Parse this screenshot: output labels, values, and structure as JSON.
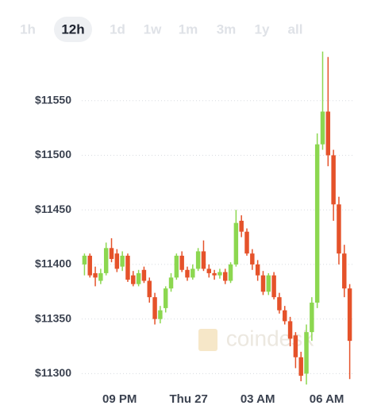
{
  "tabs": [
    {
      "label": "1h"
    },
    {
      "label": "12h",
      "selected": true
    },
    {
      "label": "1d"
    },
    {
      "label": "1w"
    },
    {
      "label": "1m"
    },
    {
      "label": "3m"
    },
    {
      "label": "1y"
    },
    {
      "label": "all"
    }
  ],
  "chart_data": {
    "type": "candlestick",
    "watermark": "coindesk",
    "up_color": "#8cd750",
    "down_color": "#e5522a",
    "grid": true,
    "open": [
      11400,
      11408,
      11392,
      11385,
      11392,
      11415,
      11410,
      11398,
      11408,
      11390,
      11382,
      11395,
      11385,
      11370,
      11350,
      11360,
      11378,
      11388,
      11408,
      11395,
      11388,
      11396,
      11412,
      11396,
      11392,
      11390,
      11393,
      11385,
      11400,
      11440,
      11430,
      11410,
      11400,
      11390,
      11375,
      11390,
      11370,
      11358,
      11348,
      11335,
      11315,
      11300,
      11338,
      11365,
      11510,
      11540,
      11500,
      11455,
      11410,
      11378
    ],
    "high": [
      11410,
      11410,
      11398,
      11396,
      11420,
      11424,
      11414,
      11412,
      11410,
      11394,
      11395,
      11398,
      11388,
      11374,
      11362,
      11380,
      11392,
      11410,
      11412,
      11398,
      11400,
      11415,
      11422,
      11400,
      11395,
      11396,
      11396,
      11402,
      11450,
      11445,
      11433,
      11414,
      11404,
      11394,
      11392,
      11393,
      11374,
      11362,
      11352,
      11338,
      11320,
      11345,
      11370,
      11520,
      11595,
      11590,
      11505,
      11462,
      11418,
      11382
    ],
    "low": [
      11390,
      11388,
      11380,
      11382,
      11390,
      11402,
      11393,
      11394,
      11384,
      11380,
      11380,
      11383,
      11365,
      11345,
      11346,
      11356,
      11375,
      11386,
      11393,
      11385,
      11386,
      11394,
      11394,
      11388,
      11386,
      11387,
      11382,
      11383,
      11398,
      11425,
      11408,
      11395,
      11385,
      11372,
      11372,
      11368,
      11355,
      11345,
      11325,
      11305,
      11293,
      11290,
      11330,
      11360,
      11505,
      11490,
      11440,
      11400,
      11370,
      11295
    ],
    "close": [
      11408,
      11390,
      11388,
      11392,
      11415,
      11405,
      11396,
      11408,
      11386,
      11382,
      11392,
      11385,
      11370,
      11350,
      11358,
      11378,
      11388,
      11408,
      11395,
      11388,
      11396,
      11412,
      11396,
      11392,
      11390,
      11393,
      11385,
      11400,
      11438,
      11430,
      11410,
      11400,
      11390,
      11375,
      11390,
      11370,
      11358,
      11348,
      11332,
      11315,
      11298,
      11338,
      11365,
      11510,
      11540,
      11500,
      11455,
      11410,
      11378,
      11330
    ],
    "xlim": [
      -0.5,
      49.5
    ],
    "xticks": [
      {
        "value": 6.5,
        "label": "09 PM"
      },
      {
        "value": 19.25,
        "label": "Thu 27"
      },
      {
        "value": 32,
        "label": "03 AM"
      },
      {
        "value": 44.75,
        "label": "06 AM"
      }
    ],
    "ylim": [
      11285,
      11600
    ],
    "yticks": [
      {
        "value": 11300,
        "label": "$11300"
      },
      {
        "value": 11350,
        "label": "$11350"
      },
      {
        "value": 11400,
        "label": "$11400"
      },
      {
        "value": 11450,
        "label": "$11450"
      },
      {
        "value": 11500,
        "label": "$11500"
      },
      {
        "value": 11550,
        "label": "$11550"
      }
    ]
  }
}
